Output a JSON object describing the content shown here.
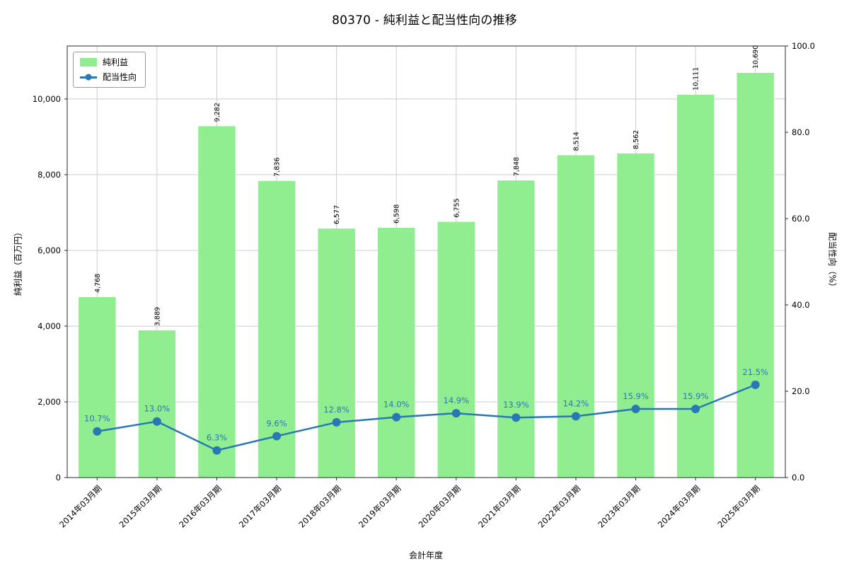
{
  "title": "80370 - 純利益と配当性向の推移",
  "chart_data": {
    "type": "bar+line",
    "categories": [
      "2014年03月期",
      "2015年03月期",
      "2016年03月期",
      "2017年03月期",
      "2018年03月期",
      "2019年03月期",
      "2020年03月期",
      "2021年03月期",
      "2022年03月期",
      "2023年03月期",
      "2024年03月期",
      "2025年03月期"
    ],
    "series": [
      {
        "name": "純利益",
        "type": "bar",
        "axis": "left",
        "color": "#90ee90",
        "values": [
          4768,
          3889,
          9282,
          7836,
          6577,
          6598,
          6755,
          7848,
          8514,
          8562,
          10111,
          10690
        ],
        "value_labels": [
          "4,768",
          "3,889",
          "9,282",
          "7,836",
          "6,577",
          "6,598",
          "6,755",
          "7,848",
          "8,514",
          "8,562",
          "10,111",
          "10,690"
        ]
      },
      {
        "name": "配当性向",
        "type": "line",
        "axis": "right",
        "color": "#2878b5",
        "values": [
          10.7,
          13.0,
          6.3,
          9.6,
          12.8,
          14.0,
          14.9,
          13.9,
          14.2,
          15.9,
          15.9,
          21.5
        ],
        "point_labels": [
          "10.7%",
          "13.0%",
          "6.3%",
          "9.6%",
          "12.8%",
          "14.0%",
          "14.9%",
          "13.9%",
          "14.2%",
          "15.9%",
          "15.9%",
          "21.5%"
        ]
      }
    ],
    "xlabel": "会計年度",
    "ylabel_left": "純利益（百万円）",
    "ylabel_right": "配当性向（%）",
    "left_ticks": [
      0,
      2000,
      4000,
      6000,
      8000,
      10000
    ],
    "left_tick_labels": [
      "0",
      "2,000",
      "4,000",
      "6,000",
      "8,000",
      "10,000"
    ],
    "left_axis_max": 11400,
    "right_ticks": [
      0,
      20,
      40,
      60,
      80,
      100
    ],
    "right_tick_labels": [
      "0.0",
      "20.0",
      "40.0",
      "60.0",
      "80.0",
      "100.0"
    ],
    "right_axis_max": 100,
    "grid": true,
    "legend_position": "top-left",
    "colors": {
      "grid": "#cccccc",
      "frame": "#2a2a2a",
      "bar_label_text": "#000000",
      "point_label_text": "#2878b5"
    }
  }
}
